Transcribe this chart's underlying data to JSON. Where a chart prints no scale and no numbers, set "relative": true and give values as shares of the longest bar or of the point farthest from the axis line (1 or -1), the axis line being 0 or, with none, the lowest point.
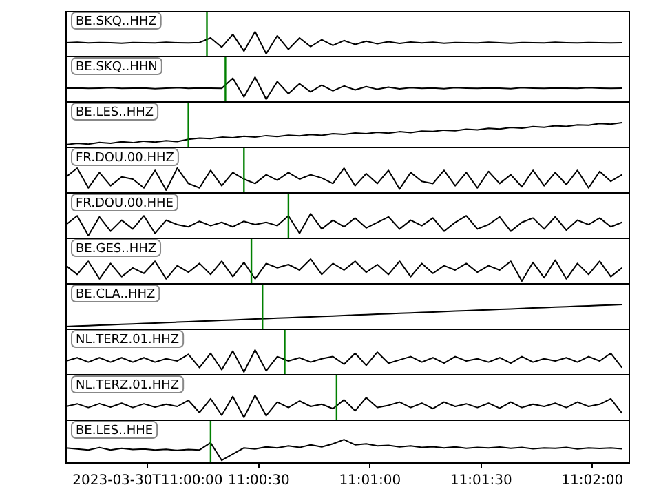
{
  "chart_data": [
    {
      "type": "line",
      "annotations": [
        "BE.SKQ..HHZ"
      ],
      "relative": true,
      "tick_labels": false,
      "xlim": [
        "2023-03-30T10:59:38",
        "2023-03-30T11:02:10"
      ],
      "x": [
        "2023-03-30T10:59:38",
        "2023-03-30T10:59:41",
        "2023-03-30T10:59:44",
        "2023-03-30T10:59:47",
        "2023-03-30T10:59:50",
        "2023-03-30T10:59:53",
        "2023-03-30T10:59:56",
        "2023-03-30T10:59:59",
        "2023-03-30T11:00:02",
        "2023-03-30T11:00:05",
        "2023-03-30T11:00:08",
        "2023-03-30T11:00:11",
        "2023-03-30T11:00:14",
        "2023-03-30T11:00:17",
        "2023-03-30T11:00:20",
        "2023-03-30T11:00:23",
        "2023-03-30T11:00:26",
        "2023-03-30T11:00:29",
        "2023-03-30T11:00:32",
        "2023-03-30T11:00:35",
        "2023-03-30T11:00:38",
        "2023-03-30T11:00:41",
        "2023-03-30T11:00:44",
        "2023-03-30T11:00:47",
        "2023-03-30T11:00:50",
        "2023-03-30T11:00:53",
        "2023-03-30T11:00:56",
        "2023-03-30T11:00:59",
        "2023-03-30T11:01:02",
        "2023-03-30T11:01:05",
        "2023-03-30T11:01:08",
        "2023-03-30T11:01:11",
        "2023-03-30T11:01:14",
        "2023-03-30T11:01:17",
        "2023-03-30T11:01:20",
        "2023-03-30T11:01:23",
        "2023-03-30T11:01:26",
        "2023-03-30T11:01:29",
        "2023-03-30T11:01:32",
        "2023-03-30T11:01:35",
        "2023-03-30T11:01:38",
        "2023-03-30T11:01:41",
        "2023-03-30T11:01:44",
        "2023-03-30T11:01:47",
        "2023-03-30T11:01:50",
        "2023-03-30T11:01:53",
        "2023-03-30T11:01:56",
        "2023-03-30T11:01:59",
        "2023-03-30T11:02:02",
        "2023-03-30T11:02:05",
        "2023-03-30T11:02:08"
      ],
      "series": [
        {
          "color": "#000000",
          "values": [
            0.5,
            0.52,
            0.49,
            0.51,
            0.5,
            0.48,
            0.51,
            0.5,
            0.49,
            0.52,
            0.5,
            0.49,
            0.51,
            0.72,
            0.3,
            0.88,
            0.12,
            1,
            0,
            0.82,
            0.2,
            0.72,
            0.32,
            0.64,
            0.38,
            0.6,
            0.42,
            0.57,
            0.45,
            0.55,
            0.47,
            0.53,
            0.49,
            0.52,
            0.48,
            0.51,
            0.5,
            0.49,
            0.52,
            0.5,
            0.48,
            0.51,
            0.5,
            0.49,
            0.52,
            0.5,
            0.49,
            0.51,
            0.5,
            0.49,
            0.5
          ]
        }
      ],
      "ref_lines": [
        {
          "axis": "x",
          "value": "2023-03-30T11:00:16",
          "color": "#008000"
        }
      ]
    },
    {
      "type": "line",
      "annotations": [
        "BE.SKQ..HHN"
      ],
      "relative": true,
      "tick_labels": false,
      "xlim": [
        "2023-03-30T10:59:38",
        "2023-03-30T11:02:10"
      ],
      "x": [
        "2023-03-30T10:59:38",
        "2023-03-30T10:59:41",
        "2023-03-30T10:59:44",
        "2023-03-30T10:59:47",
        "2023-03-30T10:59:50",
        "2023-03-30T10:59:53",
        "2023-03-30T10:59:56",
        "2023-03-30T10:59:59",
        "2023-03-30T11:00:02",
        "2023-03-30T11:00:05",
        "2023-03-30T11:00:08",
        "2023-03-30T11:00:11",
        "2023-03-30T11:00:14",
        "2023-03-30T11:00:17",
        "2023-03-30T11:00:20",
        "2023-03-30T11:00:23",
        "2023-03-30T11:00:26",
        "2023-03-30T11:00:29",
        "2023-03-30T11:00:32",
        "2023-03-30T11:00:35",
        "2023-03-30T11:00:38",
        "2023-03-30T11:00:41",
        "2023-03-30T11:00:44",
        "2023-03-30T11:00:47",
        "2023-03-30T11:00:50",
        "2023-03-30T11:00:53",
        "2023-03-30T11:00:56",
        "2023-03-30T11:00:59",
        "2023-03-30T11:01:02",
        "2023-03-30T11:01:05",
        "2023-03-30T11:01:08",
        "2023-03-30T11:01:11",
        "2023-03-30T11:01:14",
        "2023-03-30T11:01:17",
        "2023-03-30T11:01:20",
        "2023-03-30T11:01:23",
        "2023-03-30T11:01:26",
        "2023-03-30T11:01:29",
        "2023-03-30T11:01:32",
        "2023-03-30T11:01:35",
        "2023-03-30T11:01:38",
        "2023-03-30T11:01:41",
        "2023-03-30T11:01:44",
        "2023-03-30T11:01:47",
        "2023-03-30T11:01:50",
        "2023-03-30T11:01:53",
        "2023-03-30T11:01:56",
        "2023-03-30T11:01:59",
        "2023-03-30T11:02:02",
        "2023-03-30T11:02:05",
        "2023-03-30T11:02:08"
      ],
      "series": [
        {
          "color": "#000000",
          "values": [
            0.5,
            0.51,
            0.49,
            0.5,
            0.52,
            0.49,
            0.5,
            0.51,
            0.48,
            0.5,
            0.52,
            0.49,
            0.51,
            0.5,
            0.49,
            0.95,
            0.1,
            1,
            0,
            0.8,
            0.25,
            0.7,
            0.33,
            0.64,
            0.38,
            0.6,
            0.42,
            0.57,
            0.45,
            0.55,
            0.47,
            0.52,
            0.49,
            0.51,
            0.48,
            0.52,
            0.5,
            0.49,
            0.51,
            0.5,
            0.48,
            0.52,
            0.5,
            0.49,
            0.51,
            0.5,
            0.49,
            0.52,
            0.5,
            0.49,
            0.5
          ]
        }
      ],
      "ref_lines": [
        {
          "axis": "x",
          "value": "2023-03-30T11:00:21",
          "color": "#008000"
        }
      ]
    },
    {
      "type": "line",
      "annotations": [
        "BE.LES..HHZ"
      ],
      "relative": true,
      "tick_labels": false,
      "xlim": [
        "2023-03-30T10:59:38",
        "2023-03-30T11:02:10"
      ],
      "x": [
        "2023-03-30T10:59:38",
        "2023-03-30T10:59:41",
        "2023-03-30T10:59:44",
        "2023-03-30T10:59:47",
        "2023-03-30T10:59:50",
        "2023-03-30T10:59:53",
        "2023-03-30T10:59:56",
        "2023-03-30T10:59:59",
        "2023-03-30T11:00:02",
        "2023-03-30T11:00:05",
        "2023-03-30T11:00:08",
        "2023-03-30T11:00:11",
        "2023-03-30T11:00:14",
        "2023-03-30T11:00:17",
        "2023-03-30T11:00:20",
        "2023-03-30T11:00:23",
        "2023-03-30T11:00:26",
        "2023-03-30T11:00:29",
        "2023-03-30T11:00:32",
        "2023-03-30T11:00:35",
        "2023-03-30T11:00:38",
        "2023-03-30T11:00:41",
        "2023-03-30T11:00:44",
        "2023-03-30T11:00:47",
        "2023-03-30T11:00:50",
        "2023-03-30T11:00:53",
        "2023-03-30T11:00:56",
        "2023-03-30T11:00:59",
        "2023-03-30T11:01:02",
        "2023-03-30T11:01:05",
        "2023-03-30T11:01:08",
        "2023-03-30T11:01:11",
        "2023-03-30T11:01:14",
        "2023-03-30T11:01:17",
        "2023-03-30T11:01:20",
        "2023-03-30T11:01:23",
        "2023-03-30T11:01:26",
        "2023-03-30T11:01:29",
        "2023-03-30T11:01:32",
        "2023-03-30T11:01:35",
        "2023-03-30T11:01:38",
        "2023-03-30T11:01:41",
        "2023-03-30T11:01:44",
        "2023-03-30T11:01:47",
        "2023-03-30T11:01:50",
        "2023-03-30T11:01:53",
        "2023-03-30T11:01:56",
        "2023-03-30T11:01:59",
        "2023-03-30T11:02:02",
        "2023-03-30T11:02:05",
        "2023-03-30T11:02:08"
      ],
      "series": [
        {
          "color": "#000000",
          "values": [
            0,
            0.06,
            0.02,
            0.1,
            0.06,
            0.13,
            0.09,
            0.16,
            0.12,
            0.18,
            0.14,
            0.24,
            0.3,
            0.27,
            0.34,
            0.31,
            0.38,
            0.34,
            0.41,
            0.37,
            0.43,
            0.4,
            0.46,
            0.42,
            0.5,
            0.47,
            0.53,
            0.5,
            0.56,
            0.52,
            0.59,
            0.55,
            0.62,
            0.6,
            0.66,
            0.63,
            0.7,
            0.67,
            0.74,
            0.71,
            0.78,
            0.75,
            0.82,
            0.79,
            0.86,
            0.83,
            0.9,
            0.88,
            0.96,
            0.93,
            1
          ]
        }
      ],
      "ref_lines": [
        {
          "axis": "x",
          "value": "2023-03-30T11:00:11",
          "color": "#008000"
        }
      ]
    },
    {
      "type": "line",
      "annotations": [
        "FR.DOU.00.HHZ"
      ],
      "relative": true,
      "tick_labels": false,
      "xlim": [
        "2023-03-30T10:59:38",
        "2023-03-30T11:02:10"
      ],
      "x": [
        "2023-03-30T10:59:38",
        "2023-03-30T10:59:41",
        "2023-03-30T10:59:44",
        "2023-03-30T10:59:47",
        "2023-03-30T10:59:50",
        "2023-03-30T10:59:53",
        "2023-03-30T10:59:56",
        "2023-03-30T10:59:59",
        "2023-03-30T11:00:02",
        "2023-03-30T11:00:05",
        "2023-03-30T11:00:08",
        "2023-03-30T11:00:11",
        "2023-03-30T11:00:14",
        "2023-03-30T11:00:17",
        "2023-03-30T11:00:20",
        "2023-03-30T11:00:23",
        "2023-03-30T11:00:26",
        "2023-03-30T11:00:29",
        "2023-03-30T11:00:32",
        "2023-03-30T11:00:35",
        "2023-03-30T11:00:38",
        "2023-03-30T11:00:41",
        "2023-03-30T11:00:44",
        "2023-03-30T11:00:47",
        "2023-03-30T11:00:50",
        "2023-03-30T11:00:53",
        "2023-03-30T11:00:56",
        "2023-03-30T11:00:59",
        "2023-03-30T11:01:02",
        "2023-03-30T11:01:05",
        "2023-03-30T11:01:08",
        "2023-03-30T11:01:11",
        "2023-03-30T11:01:14",
        "2023-03-30T11:01:17",
        "2023-03-30T11:01:20",
        "2023-03-30T11:01:23",
        "2023-03-30T11:01:26",
        "2023-03-30T11:01:29",
        "2023-03-30T11:01:32",
        "2023-03-30T11:01:35",
        "2023-03-30T11:01:38",
        "2023-03-30T11:01:41",
        "2023-03-30T11:01:44",
        "2023-03-30T11:01:47",
        "2023-03-30T11:01:50",
        "2023-03-30T11:01:53",
        "2023-03-30T11:01:56",
        "2023-03-30T11:01:59",
        "2023-03-30T11:02:02",
        "2023-03-30T11:02:05",
        "2023-03-30T11:02:08"
      ],
      "series": [
        {
          "color": "#000000",
          "values": [
            0.6,
            1,
            0.1,
            0.8,
            0.2,
            0.6,
            0.5,
            0.1,
            0.9,
            0,
            1,
            0.3,
            0.1,
            0.9,
            0.2,
            0.8,
            0.5,
            0.3,
            0.7,
            0.45,
            0.8,
            0.5,
            0.7,
            0.55,
            0.3,
            1,
            0.2,
            0.75,
            0.3,
            0.9,
            0.05,
            0.8,
            0.4,
            0.3,
            0.9,
            0.2,
            0.8,
            0.1,
            0.85,
            0.3,
            0.7,
            0.15,
            0.9,
            0.2,
            0.8,
            0.25,
            0.9,
            0.1,
            0.85,
            0.4,
            0.7
          ]
        }
      ],
      "ref_lines": [
        {
          "axis": "x",
          "value": "2023-03-30T11:00:26",
          "color": "#008000"
        }
      ]
    },
    {
      "type": "line",
      "annotations": [
        "FR.DOU.00.HHE"
      ],
      "relative": true,
      "tick_labels": false,
      "xlim": [
        "2023-03-30T10:59:38",
        "2023-03-30T11:02:10"
      ],
      "x": [
        "2023-03-30T10:59:38",
        "2023-03-30T10:59:41",
        "2023-03-30T10:59:44",
        "2023-03-30T10:59:47",
        "2023-03-30T10:59:50",
        "2023-03-30T10:59:53",
        "2023-03-30T10:59:56",
        "2023-03-30T10:59:59",
        "2023-03-30T11:00:02",
        "2023-03-30T11:00:05",
        "2023-03-30T11:00:08",
        "2023-03-30T11:00:11",
        "2023-03-30T11:00:14",
        "2023-03-30T11:00:17",
        "2023-03-30T11:00:20",
        "2023-03-30T11:00:23",
        "2023-03-30T11:00:26",
        "2023-03-30T11:00:29",
        "2023-03-30T11:00:32",
        "2023-03-30T11:00:35",
        "2023-03-30T11:00:38",
        "2023-03-30T11:00:41",
        "2023-03-30T11:00:44",
        "2023-03-30T11:00:47",
        "2023-03-30T11:00:50",
        "2023-03-30T11:00:53",
        "2023-03-30T11:00:56",
        "2023-03-30T11:00:59",
        "2023-03-30T11:01:02",
        "2023-03-30T11:01:05",
        "2023-03-30T11:01:08",
        "2023-03-30T11:01:11",
        "2023-03-30T11:01:14",
        "2023-03-30T11:01:17",
        "2023-03-30T11:01:20",
        "2023-03-30T11:01:23",
        "2023-03-30T11:01:26",
        "2023-03-30T11:01:29",
        "2023-03-30T11:01:32",
        "2023-03-30T11:01:35",
        "2023-03-30T11:01:38",
        "2023-03-30T11:01:41",
        "2023-03-30T11:01:44",
        "2023-03-30T11:01:47",
        "2023-03-30T11:01:50",
        "2023-03-30T11:01:53",
        "2023-03-30T11:01:56",
        "2023-03-30T11:01:59",
        "2023-03-30T11:02:02",
        "2023-03-30T11:02:05",
        "2023-03-30T11:02:08"
      ],
      "series": [
        {
          "color": "#000000",
          "values": [
            0.5,
            0.9,
            0,
            0.85,
            0.2,
            0.7,
            0.3,
            0.9,
            0.1,
            0.7,
            0.5,
            0.4,
            0.65,
            0.45,
            0.6,
            0.4,
            0.65,
            0.5,
            0.6,
            0.45,
            0.9,
            0.1,
            1,
            0.3,
            0.7,
            0.4,
            0.8,
            0.35,
            0.6,
            0.85,
            0.3,
            0.7,
            0.45,
            0.8,
            0.2,
            0.6,
            0.9,
            0.3,
            0.5,
            0.85,
            0.2,
            0.6,
            0.8,
            0.3,
            0.85,
            0.25,
            0.7,
            0.5,
            0.8,
            0.4,
            0.6
          ]
        }
      ],
      "ref_lines": [
        {
          "axis": "x",
          "value": "2023-03-30T11:00:38",
          "color": "#008000"
        }
      ]
    },
    {
      "type": "line",
      "annotations": [
        "BE.GES..HHZ"
      ],
      "relative": true,
      "tick_labels": false,
      "xlim": [
        "2023-03-30T10:59:38",
        "2023-03-30T11:02:10"
      ],
      "x": [
        "2023-03-30T10:59:38",
        "2023-03-30T10:59:41",
        "2023-03-30T10:59:44",
        "2023-03-30T10:59:47",
        "2023-03-30T10:59:50",
        "2023-03-30T10:59:53",
        "2023-03-30T10:59:56",
        "2023-03-30T10:59:59",
        "2023-03-30T11:00:02",
        "2023-03-30T11:00:05",
        "2023-03-30T11:00:08",
        "2023-03-30T11:00:11",
        "2023-03-30T11:00:14",
        "2023-03-30T11:00:17",
        "2023-03-30T11:00:20",
        "2023-03-30T11:00:23",
        "2023-03-30T11:00:26",
        "2023-03-30T11:00:29",
        "2023-03-30T11:00:32",
        "2023-03-30T11:00:35",
        "2023-03-30T11:00:38",
        "2023-03-30T11:00:41",
        "2023-03-30T11:00:44",
        "2023-03-30T11:00:47",
        "2023-03-30T11:00:50",
        "2023-03-30T11:00:53",
        "2023-03-30T11:00:56",
        "2023-03-30T11:00:59",
        "2023-03-30T11:01:02",
        "2023-03-30T11:01:05",
        "2023-03-30T11:01:08",
        "2023-03-30T11:01:11",
        "2023-03-30T11:01:14",
        "2023-03-30T11:01:17",
        "2023-03-30T11:01:20",
        "2023-03-30T11:01:23",
        "2023-03-30T11:01:26",
        "2023-03-30T11:01:29",
        "2023-03-30T11:01:32",
        "2023-03-30T11:01:35",
        "2023-03-30T11:01:38",
        "2023-03-30T11:01:41",
        "2023-03-30T11:01:44",
        "2023-03-30T11:01:47",
        "2023-03-30T11:01:50",
        "2023-03-30T11:01:53",
        "2023-03-30T11:01:56",
        "2023-03-30T11:01:59",
        "2023-03-30T11:02:02",
        "2023-03-30T11:02:05",
        "2023-03-30T11:02:08"
      ],
      "series": [
        {
          "color": "#000000",
          "values": [
            0.7,
            0.3,
            0.9,
            0.1,
            0.8,
            0.2,
            0.6,
            0.35,
            0.9,
            0.1,
            0.7,
            0.4,
            0.8,
            0.3,
            0.9,
            0.2,
            0.85,
            0.1,
            0.8,
            0.6,
            0.75,
            0.5,
            1,
            0.3,
            0.8,
            0.5,
            0.9,
            0.4,
            0.75,
            0.3,
            0.9,
            0.2,
            0.8,
            0.35,
            0.7,
            0.5,
            0.8,
            0.4,
            0.7,
            0.5,
            0.9,
            0,
            0.85,
            0.15,
            0.95,
            0.1,
            0.8,
            0.3,
            0.9,
            0.2,
            0.6
          ]
        }
      ],
      "ref_lines": [
        {
          "axis": "x",
          "value": "2023-03-30T11:00:28",
          "color": "#008000"
        }
      ]
    },
    {
      "type": "line",
      "annotations": [
        "BE.CLA..HHZ"
      ],
      "relative": true,
      "tick_labels": false,
      "xlim": [
        "2023-03-30T10:59:38",
        "2023-03-30T11:02:10"
      ],
      "x": [
        "2023-03-30T10:59:38",
        "2023-03-30T10:59:41",
        "2023-03-30T10:59:44",
        "2023-03-30T10:59:47",
        "2023-03-30T10:59:50",
        "2023-03-30T10:59:53",
        "2023-03-30T10:59:56",
        "2023-03-30T10:59:59",
        "2023-03-30T11:00:02",
        "2023-03-30T11:00:05",
        "2023-03-30T11:00:08",
        "2023-03-30T11:00:11",
        "2023-03-30T11:00:14",
        "2023-03-30T11:00:17",
        "2023-03-30T11:00:20",
        "2023-03-30T11:00:23",
        "2023-03-30T11:00:26",
        "2023-03-30T11:00:29",
        "2023-03-30T11:00:32",
        "2023-03-30T11:00:35",
        "2023-03-30T11:00:38",
        "2023-03-30T11:00:41",
        "2023-03-30T11:00:44",
        "2023-03-30T11:00:47",
        "2023-03-30T11:00:50",
        "2023-03-30T11:00:53",
        "2023-03-30T11:00:56",
        "2023-03-30T11:00:59",
        "2023-03-30T11:01:02",
        "2023-03-30T11:01:05",
        "2023-03-30T11:01:08",
        "2023-03-30T11:01:11",
        "2023-03-30T11:01:14",
        "2023-03-30T11:01:17",
        "2023-03-30T11:01:20",
        "2023-03-30T11:01:23",
        "2023-03-30T11:01:26",
        "2023-03-30T11:01:29",
        "2023-03-30T11:01:32",
        "2023-03-30T11:01:35",
        "2023-03-30T11:01:38",
        "2023-03-30T11:01:41",
        "2023-03-30T11:01:44",
        "2023-03-30T11:01:47",
        "2023-03-30T11:01:50",
        "2023-03-30T11:01:53",
        "2023-03-30T11:01:56",
        "2023-03-30T11:01:59",
        "2023-03-30T11:02:02",
        "2023-03-30T11:02:05",
        "2023-03-30T11:02:08"
      ],
      "series": [
        {
          "color": "#000000",
          "values": [
            0,
            0.02,
            0.04,
            0.06,
            0.08,
            0.1,
            0.12,
            0.14,
            0.16,
            0.18,
            0.2,
            0.22,
            0.24,
            0.26,
            0.28,
            0.3,
            0.32,
            0.34,
            0.36,
            0.38,
            0.4,
            0.42,
            0.44,
            0.46,
            0.48,
            0.5,
            0.52,
            0.54,
            0.56,
            0.58,
            0.6,
            0.62,
            0.64,
            0.66,
            0.68,
            0.7,
            0.72,
            0.74,
            0.76,
            0.78,
            0.8,
            0.82,
            0.84,
            0.86,
            0.88,
            0.9,
            0.92,
            0.94,
            0.96,
            0.98,
            1
          ]
        }
      ],
      "ref_lines": [
        {
          "axis": "x",
          "value": "2023-03-30T11:00:31",
          "color": "#008000"
        }
      ]
    },
    {
      "type": "line",
      "annotations": [
        "NL.TERZ.01.HHZ"
      ],
      "relative": true,
      "tick_labels": false,
      "xlim": [
        "2023-03-30T10:59:38",
        "2023-03-30T11:02:10"
      ],
      "x": [
        "2023-03-30T10:59:38",
        "2023-03-30T10:59:41",
        "2023-03-30T10:59:44",
        "2023-03-30T10:59:47",
        "2023-03-30T10:59:50",
        "2023-03-30T10:59:53",
        "2023-03-30T10:59:56",
        "2023-03-30T10:59:59",
        "2023-03-30T11:00:02",
        "2023-03-30T11:00:05",
        "2023-03-30T11:00:08",
        "2023-03-30T11:00:11",
        "2023-03-30T11:00:14",
        "2023-03-30T11:00:17",
        "2023-03-30T11:00:20",
        "2023-03-30T11:00:23",
        "2023-03-30T11:00:26",
        "2023-03-30T11:00:29",
        "2023-03-30T11:00:32",
        "2023-03-30T11:00:35",
        "2023-03-30T11:00:38",
        "2023-03-30T11:00:41",
        "2023-03-30T11:00:44",
        "2023-03-30T11:00:47",
        "2023-03-30T11:00:50",
        "2023-03-30T11:00:53",
        "2023-03-30T11:00:56",
        "2023-03-30T11:00:59",
        "2023-03-30T11:01:02",
        "2023-03-30T11:01:05",
        "2023-03-30T11:01:08",
        "2023-03-30T11:01:11",
        "2023-03-30T11:01:14",
        "2023-03-30T11:01:17",
        "2023-03-30T11:01:20",
        "2023-03-30T11:01:23",
        "2023-03-30T11:01:26",
        "2023-03-30T11:01:29",
        "2023-03-30T11:01:32",
        "2023-03-30T11:01:35",
        "2023-03-30T11:01:38",
        "2023-03-30T11:01:41",
        "2023-03-30T11:01:44",
        "2023-03-30T11:01:47",
        "2023-03-30T11:01:50",
        "2023-03-30T11:01:53",
        "2023-03-30T11:01:56",
        "2023-03-30T11:01:59",
        "2023-03-30T11:02:02",
        "2023-03-30T11:02:05",
        "2023-03-30T11:02:08"
      ],
      "series": [
        {
          "color": "#000000",
          "values": [
            0.5,
            0.65,
            0.45,
            0.65,
            0.45,
            0.65,
            0.45,
            0.65,
            0.45,
            0.6,
            0.5,
            0.8,
            0.2,
            0.85,
            0.1,
            0.95,
            0,
            1,
            0.05,
            0.7,
            0.5,
            0.65,
            0.45,
            0.6,
            0.7,
            0.35,
            0.85,
            0.3,
            0.9,
            0.4,
            0.55,
            0.7,
            0.45,
            0.65,
            0.4,
            0.7,
            0.5,
            0.6,
            0.45,
            0.65,
            0.4,
            0.7,
            0.45,
            0.6,
            0.5,
            0.65,
            0.45,
            0.7,
            0.5,
            0.85,
            0.2
          ]
        }
      ],
      "ref_lines": [
        {
          "axis": "x",
          "value": "2023-03-30T11:00:37",
          "color": "#008000"
        }
      ]
    },
    {
      "type": "line",
      "annotations": [
        "NL.TERZ.01.HHZ"
      ],
      "relative": true,
      "tick_labels": false,
      "xlim": [
        "2023-03-30T10:59:38",
        "2023-03-30T11:02:10"
      ],
      "x": [
        "2023-03-30T10:59:38",
        "2023-03-30T10:59:41",
        "2023-03-30T10:59:44",
        "2023-03-30T10:59:47",
        "2023-03-30T10:59:50",
        "2023-03-30T10:59:53",
        "2023-03-30T10:59:56",
        "2023-03-30T10:59:59",
        "2023-03-30T11:00:02",
        "2023-03-30T11:00:05",
        "2023-03-30T11:00:08",
        "2023-03-30T11:00:11",
        "2023-03-30T11:00:14",
        "2023-03-30T11:00:17",
        "2023-03-30T11:00:20",
        "2023-03-30T11:00:23",
        "2023-03-30T11:00:26",
        "2023-03-30T11:00:29",
        "2023-03-30T11:00:32",
        "2023-03-30T11:00:35",
        "2023-03-30T11:00:38",
        "2023-03-30T11:00:41",
        "2023-03-30T11:00:44",
        "2023-03-30T11:00:47",
        "2023-03-30T11:00:50",
        "2023-03-30T11:00:53",
        "2023-03-30T11:00:56",
        "2023-03-30T11:00:59",
        "2023-03-30T11:01:02",
        "2023-03-30T11:01:05",
        "2023-03-30T11:01:08",
        "2023-03-30T11:01:11",
        "2023-03-30T11:01:14",
        "2023-03-30T11:01:17",
        "2023-03-30T11:01:20",
        "2023-03-30T11:01:23",
        "2023-03-30T11:01:26",
        "2023-03-30T11:01:29",
        "2023-03-30T11:01:32",
        "2023-03-30T11:01:35",
        "2023-03-30T11:01:38",
        "2023-03-30T11:01:41",
        "2023-03-30T11:01:44",
        "2023-03-30T11:01:47",
        "2023-03-30T11:01:50",
        "2023-03-30T11:01:53",
        "2023-03-30T11:01:56",
        "2023-03-30T11:01:59",
        "2023-03-30T11:02:02",
        "2023-03-30T11:02:05",
        "2023-03-30T11:02:08"
      ],
      "series": [
        {
          "color": "#000000",
          "values": [
            0.5,
            0.62,
            0.45,
            0.63,
            0.47,
            0.65,
            0.45,
            0.62,
            0.47,
            0.6,
            0.5,
            0.78,
            0.22,
            0.85,
            0.1,
            0.95,
            0,
            1,
            0.08,
            0.7,
            0.45,
            0.75,
            0.5,
            0.6,
            0.4,
            0.8,
            0.3,
            0.9,
            0.45,
            0.55,
            0.7,
            0.45,
            0.65,
            0.4,
            0.7,
            0.5,
            0.62,
            0.45,
            0.65,
            0.42,
            0.7,
            0.45,
            0.6,
            0.5,
            0.65,
            0.45,
            0.7,
            0.5,
            0.6,
            0.85,
            0.2
          ]
        }
      ],
      "ref_lines": [
        {
          "axis": "x",
          "value": "2023-03-30T11:00:51",
          "color": "#008000"
        }
      ]
    },
    {
      "type": "line",
      "annotations": [
        "BE.LES..HHE"
      ],
      "relative": true,
      "tick_labels": "x",
      "xlim": [
        "2023-03-30T10:59:38",
        "2023-03-30T11:02:10"
      ],
      "xticks": [
        {
          "value": "2023-03-30T11:00:00",
          "label": "2023-03-30T11:00:00"
        },
        {
          "value": "2023-03-30T11:00:30",
          "label": "11:00:30"
        },
        {
          "value": "2023-03-30T11:01:00",
          "label": "11:01:00"
        },
        {
          "value": "2023-03-30T11:01:30",
          "label": "11:01:30"
        },
        {
          "value": "2023-03-30T11:02:00",
          "label": "11:02:00"
        }
      ],
      "x": [
        "2023-03-30T10:59:38",
        "2023-03-30T10:59:41",
        "2023-03-30T10:59:44",
        "2023-03-30T10:59:47",
        "2023-03-30T10:59:50",
        "2023-03-30T10:59:53",
        "2023-03-30T10:59:56",
        "2023-03-30T10:59:59",
        "2023-03-30T11:00:02",
        "2023-03-30T11:00:05",
        "2023-03-30T11:00:08",
        "2023-03-30T11:00:11",
        "2023-03-30T11:00:14",
        "2023-03-30T11:00:17",
        "2023-03-30T11:00:20",
        "2023-03-30T11:00:23",
        "2023-03-30T11:00:26",
        "2023-03-30T11:00:29",
        "2023-03-30T11:00:32",
        "2023-03-30T11:00:35",
        "2023-03-30T11:00:38",
        "2023-03-30T11:00:41",
        "2023-03-30T11:00:44",
        "2023-03-30T11:00:47",
        "2023-03-30T11:00:50",
        "2023-03-30T11:00:53",
        "2023-03-30T11:00:56",
        "2023-03-30T11:00:59",
        "2023-03-30T11:01:02",
        "2023-03-30T11:01:05",
        "2023-03-30T11:01:08",
        "2023-03-30T11:01:11",
        "2023-03-30T11:01:14",
        "2023-03-30T11:01:17",
        "2023-03-30T11:01:20",
        "2023-03-30T11:01:23",
        "2023-03-30T11:01:26",
        "2023-03-30T11:01:29",
        "2023-03-30T11:01:32",
        "2023-03-30T11:01:35",
        "2023-03-30T11:01:38",
        "2023-03-30T11:01:41",
        "2023-03-30T11:01:44",
        "2023-03-30T11:01:47",
        "2023-03-30T11:01:50",
        "2023-03-30T11:01:53",
        "2023-03-30T11:01:56",
        "2023-03-30T11:01:59",
        "2023-03-30T11:02:02",
        "2023-03-30T11:02:05",
        "2023-03-30T11:02:08"
      ],
      "series": [
        {
          "color": "#000000",
          "values": [
            0.6,
            0.55,
            0.5,
            0.62,
            0.5,
            0.58,
            0.52,
            0.55,
            0.5,
            0.53,
            0.48,
            0.52,
            0.5,
            0.85,
            0,
            0.3,
            0.6,
            0.55,
            0.65,
            0.6,
            0.7,
            0.62,
            0.75,
            0.65,
            0.8,
            1,
            0.75,
            0.8,
            0.7,
            0.72,
            0.65,
            0.7,
            0.62,
            0.66,
            0.6,
            0.65,
            0.58,
            0.62,
            0.6,
            0.64,
            0.58,
            0.62,
            0.56,
            0.6,
            0.58,
            0.62,
            0.55,
            0.6,
            0.57,
            0.6,
            0.56
          ]
        }
      ],
      "ref_lines": [
        {
          "axis": "x",
          "value": "2023-03-30T11:00:17",
          "color": "#008000"
        }
      ]
    }
  ]
}
